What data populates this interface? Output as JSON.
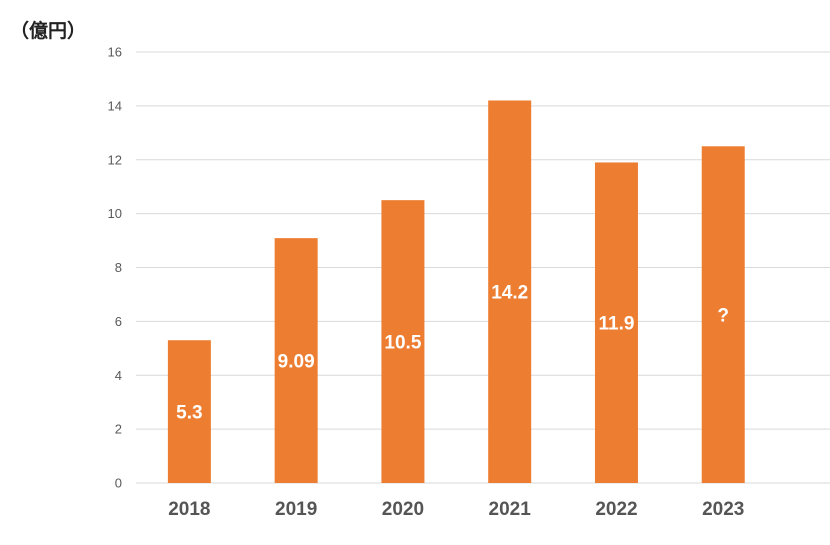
{
  "unit_label": "（億円）",
  "chart_data": {
    "type": "bar",
    "ylabel": "（億円）",
    "categories": [
      "2018",
      "2019",
      "2020",
      "2021",
      "2022",
      "2023"
    ],
    "values": [
      5.3,
      9.09,
      10.5,
      14.2,
      11.9,
      12.5
    ],
    "data_labels": [
      "5.3",
      "9.09",
      "10.5",
      "14.2",
      "11.9",
      "?"
    ],
    "ylim": [
      0,
      16
    ],
    "yticks": [
      0,
      2,
      4,
      6,
      8,
      10,
      12,
      14,
      16
    ],
    "grid": true,
    "bar_color": "#ED7D31",
    "grid_color": "#D9D9D9"
  }
}
